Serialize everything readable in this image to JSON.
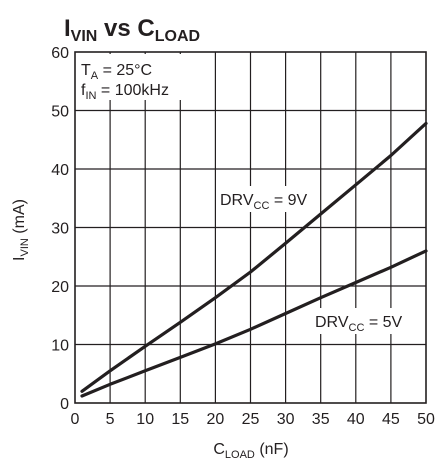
{
  "chart_data": {
    "type": "line",
    "title": {
      "main": "I",
      "main_sub": "VIN",
      "mid": " vs C",
      "mid_sub": "LOAD"
    },
    "xlabel": {
      "main": "C",
      "sub": "LOAD",
      "unit": " (nF)"
    },
    "ylabel": {
      "main": "I",
      "sub": "VIN",
      "unit": " (mA)"
    },
    "xlim": [
      0,
      50
    ],
    "ylim": [
      0,
      60
    ],
    "xticks": [
      "0",
      "5",
      "10",
      "15",
      "20",
      "25",
      "30",
      "35",
      "40",
      "45",
      "50"
    ],
    "yticks": [
      "0",
      "10",
      "20",
      "30",
      "40",
      "50",
      "60"
    ],
    "grid": true,
    "conditions": [
      {
        "main": "T",
        "sub": "A",
        "rest": " = 25°C"
      },
      {
        "main": "f",
        "sub": "IN",
        "rest": " = 100kHz"
      }
    ],
    "series": [
      {
        "label": {
          "main": "DRV",
          "sub": "CC",
          "rest": " = 9V"
        },
        "x": [
          1,
          5,
          10,
          15,
          20,
          25,
          30,
          35,
          40,
          45,
          50
        ],
        "y": [
          2,
          5.5,
          9.7,
          13.8,
          18,
          22.4,
          27.3,
          32.3,
          37.3,
          42.3,
          47.8
        ]
      },
      {
        "label": {
          "main": "DRV",
          "sub": "CC",
          "rest": " = 5V"
        },
        "x": [
          1,
          5,
          10,
          15,
          20,
          25,
          30,
          35,
          40,
          45,
          50
        ],
        "y": [
          1.2,
          3.2,
          5.5,
          7.8,
          10.1,
          12.6,
          15.3,
          18,
          20.6,
          23.2,
          26
        ]
      }
    ]
  }
}
